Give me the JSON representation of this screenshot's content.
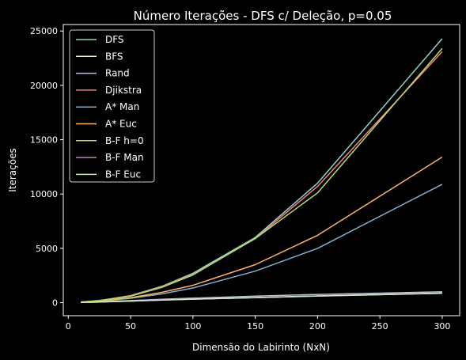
{
  "chart_data": {
    "type": "line",
    "title": "Número Iterações - DFS c/ Deleção, p=0.05",
    "xlabel": "Dimensão do Labirinto (NxN)",
    "ylabel": "Iterações",
    "xlim": [
      -4,
      314
    ],
    "ylim": [
      -1200,
      25600
    ],
    "xticks": [
      0,
      50,
      100,
      150,
      200,
      250,
      300
    ],
    "yticks": [
      0,
      5000,
      10000,
      15000,
      20000,
      25000
    ],
    "grid": false,
    "legend_position": "top-left",
    "background": "#000000",
    "x": [
      10,
      25,
      50,
      75,
      100,
      150,
      200,
      300
    ],
    "series": [
      {
        "name": "DFS",
        "color": "#8dd3c7",
        "values": [
          60,
          200,
          650,
          1500,
          2700,
          6000,
          11000,
          24300
        ]
      },
      {
        "name": "BFS",
        "color": "#feffb3",
        "values": [
          20,
          60,
          150,
          250,
          330,
          470,
          620,
          880
        ]
      },
      {
        "name": "Rand",
        "color": "#bfbbd9",
        "values": [
          25,
          80,
          190,
          310,
          420,
          600,
          760,
          1000
        ]
      },
      {
        "name": "Djikstra",
        "color": "#fa8174",
        "values": [
          55,
          190,
          620,
          1450,
          2600,
          5900,
          10700,
          23100
        ]
      },
      {
        "name": "A* Man",
        "color": "#81b1d2",
        "values": [
          40,
          120,
          400,
          800,
          1350,
          2900,
          5000,
          10900
        ]
      },
      {
        "name": "A* Euc",
        "color": "#fdb462",
        "values": [
          45,
          140,
          460,
          950,
          1600,
          3500,
          6200,
          13400
        ]
      },
      {
        "name": "B-F h=0",
        "color": "#b3de69",
        "values": [
          50,
          180,
          600,
          1400,
          2550,
          5900,
          10100,
          23400
        ]
      },
      {
        "name": "B-F Man",
        "color": "#bc82bd",
        "values": [
          18,
          55,
          140,
          240,
          320,
          460,
          600,
          860
        ]
      },
      {
        "name": "B-F Euc",
        "color": "#ccebc4",
        "values": [
          19,
          57,
          145,
          245,
          325,
          465,
          610,
          870
        ]
      }
    ]
  }
}
